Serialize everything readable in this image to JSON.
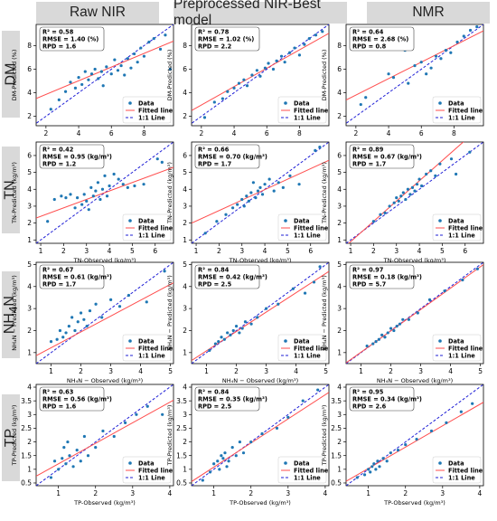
{
  "columns": [
    "Raw NIR",
    "Preprocessed NIR-Best model",
    "NMR"
  ],
  "rows": [
    {
      "label": "DM",
      "html": "DM"
    },
    {
      "label": "TN",
      "html": "TN"
    },
    {
      "label": "NH4N",
      "html": "NH<sub>4</sub>N"
    },
    {
      "label": "TP",
      "html": "TP"
    }
  ],
  "legend": {
    "data": "Data",
    "fitted": "Fitted line",
    "oneone": "1:1 Line"
  },
  "colors": {
    "data": "#1f77b4",
    "fitted": "#ff4d4d",
    "oneone": "#1f1fd6",
    "header_bg": "#d9d9d9"
  },
  "chart_data": [
    {
      "type": "scatter",
      "row": "DM",
      "column": "Raw NIR",
      "xlabel": "",
      "ylabel": "DM-Predicted (%)",
      "stats": [
        "R² = 0.58",
        "RMSE = 1.40 (%)",
        "RPD = 1.6"
      ],
      "xlim": [
        1.4,
        9.8
      ],
      "ylim": [
        1.2,
        9.8
      ],
      "xticks": [
        2,
        4,
        6,
        8
      ],
      "yticks": [
        2,
        4,
        6,
        8
      ],
      "fit": {
        "slope": 0.58,
        "intercept": 2.7
      },
      "x": [
        2.3,
        2.8,
        3.2,
        3.5,
        3.8,
        4.0,
        4.2,
        4.4,
        4.6,
        4.8,
        5.0,
        5.2,
        5.4,
        5.5,
        5.7,
        6.0,
        6.2,
        6.4,
        6.6,
        6.8,
        7.0,
        7.2,
        7.4,
        7.6,
        7.8,
        8.0,
        8.3,
        8.6,
        9.0,
        9.3,
        9.6
      ],
      "y": [
        2.6,
        3.4,
        4.1,
        4.9,
        4.4,
        5.3,
        4.7,
        5.8,
        5.1,
        5.6,
        6.0,
        5.2,
        5.8,
        4.6,
        6.2,
        5.6,
        6.8,
        5.9,
        6.3,
        5.5,
        6.9,
        6.1,
        7.3,
        6.6,
        7.8,
        7.1,
        8.3,
        8.6,
        7.7,
        8.9,
        6.0
      ]
    },
    {
      "type": "scatter",
      "row": "DM",
      "column": "Preprocessed NIR-Best model",
      "xlabel": "",
      "ylabel": "DM-Predicted (%)",
      "stats": [
        "R² = 0.78",
        "RMSE = 1.02 (%)",
        "RPD = 2.2"
      ],
      "xlim": [
        1.4,
        9.8
      ],
      "ylim": [
        1.2,
        9.8
      ],
      "xticks": [
        2,
        4,
        6,
        8
      ],
      "yticks": [
        2,
        4,
        6,
        8
      ],
      "fit": {
        "slope": 0.78,
        "intercept": 1.4
      },
      "x": [
        2.2,
        2.8,
        3.3,
        3.6,
        4.0,
        4.3,
        4.6,
        4.8,
        5.1,
        5.4,
        5.6,
        5.9,
        6.1,
        6.4,
        6.6,
        6.9,
        7.1,
        7.4,
        7.7,
        8.0,
        8.3,
        8.6,
        9.0,
        9.4
      ],
      "y": [
        1.9,
        3.2,
        3.5,
        4.1,
        4.4,
        4.8,
        5.1,
        4.6,
        5.5,
        5.9,
        5.4,
        6.1,
        6.5,
        6.0,
        6.7,
        7.1,
        6.6,
        7.4,
        7.8,
        7.2,
        8.1,
        8.6,
        8.9,
        9.2
      ]
    },
    {
      "type": "scatter",
      "row": "DM",
      "column": "NMR",
      "xlabel": "",
      "ylabel": "DM-Predicted (%)",
      "stats": [
        "R² = 0.64",
        "RMSE = 2.68 (%)",
        "RPD = 0.8"
      ],
      "xlim": [
        1.4,
        9.8
      ],
      "ylim": [
        1.2,
        9.8
      ],
      "xticks": [
        2,
        4,
        6,
        8
      ],
      "yticks": [
        2,
        4,
        6,
        8
      ],
      "fit": {
        "slope": 0.7,
        "intercept": 2.4
      },
      "x": [
        2.3,
        2.6,
        3.5,
        3.8,
        4.0,
        4.3,
        4.5,
        4.8,
        5.0,
        5.2,
        5.6,
        6.0,
        6.3,
        6.6,
        6.9,
        7.2,
        7.5,
        7.8,
        8.2,
        8.6,
        9.0,
        9.4
      ],
      "y": [
        3.0,
        3.6,
        8.3,
        8.8,
        5.6,
        5.3,
        7.9,
        8.6,
        7.6,
        4.8,
        6.3,
        6.6,
        5.6,
        6.1,
        7.1,
        6.9,
        7.6,
        7.4,
        8.3,
        8.8,
        9.3,
        9.6
      ]
    },
    {
      "type": "scatter",
      "row": "TN",
      "column": "Raw NIR",
      "xlabel": "TN-Observed (kg/m³)",
      "ylabel": "TN-Predicted (kg/m³)",
      "stats": [
        "R² = 0.42",
        "RMSE = 0.95 (kg/m³)",
        "RPD = 1.2"
      ],
      "xlim": [
        0.8,
        6.8
      ],
      "ylim": [
        0.8,
        6.8
      ],
      "xticks": [
        1,
        2,
        3,
        4,
        5,
        6
      ],
      "yticks": [
        1,
        2,
        3,
        4,
        5,
        6
      ],
      "fit": {
        "slope": 0.5,
        "intercept": 1.9
      },
      "x": [
        1.3,
        1.6,
        1.9,
        2.1,
        2.3,
        2.5,
        2.6,
        2.8,
        2.9,
        3.0,
        3.1,
        3.2,
        3.3,
        3.4,
        3.5,
        3.6,
        3.7,
        3.8,
        3.9,
        4.0,
        4.2,
        4.4,
        4.6,
        4.8,
        5.1,
        5.5,
        6.1,
        6.3
      ],
      "y": [
        2.1,
        3.4,
        3.6,
        3.5,
        3.7,
        2.9,
        3.5,
        3.1,
        3.7,
        3.3,
        2.8,
        4.1,
        3.6,
        3.9,
        4.4,
        3.4,
        4.0,
        4.8,
        3.6,
        4.2,
        4.9,
        4.6,
        4.3,
        4.1,
        4.2,
        4.3,
        5.8,
        5.6
      ]
    },
    {
      "type": "scatter",
      "row": "TN",
      "column": "Preprocessed NIR-Best model",
      "xlabel": "TN-Observed (kg/m³)",
      "ylabel": "TN-Predicted (kg/m³)",
      "stats": [
        "R² = 0.66",
        "RMSE = 0.70 (kg/m³)",
        "RPD = 1.7"
      ],
      "xlim": [
        0.8,
        6.8
      ],
      "ylim": [
        0.8,
        6.8
      ],
      "xticks": [
        1,
        2,
        3,
        4,
        5,
        6
      ],
      "yticks": [
        1,
        2,
        3,
        4,
        5,
        6
      ],
      "fit": {
        "slope": 0.62,
        "intercept": 1.5
      },
      "x": [
        1.4,
        1.9,
        2.3,
        2.6,
        2.8,
        3.0,
        3.1,
        3.2,
        3.3,
        3.4,
        3.5,
        3.6,
        3.7,
        3.8,
        3.9,
        4.0,
        4.2,
        4.4,
        4.6,
        4.8,
        5.1,
        5.5,
        6.2,
        6.4
      ],
      "y": [
        1.4,
        2.1,
        2.5,
        2.9,
        3.1,
        3.4,
        3.0,
        3.6,
        3.3,
        3.8,
        4.4,
        3.5,
        3.9,
        4.1,
        3.7,
        4.3,
        4.6,
        3.9,
        4.4,
        4.1,
        4.8,
        4.3,
        6.3,
        6.5
      ]
    },
    {
      "type": "scatter",
      "row": "TN",
      "column": "NMR",
      "xlabel": "TN-Observed (kg/m³)",
      "ylabel": "TN-Predicted (kg/m³)",
      "stats": [
        "R² = 0.89",
        "RMSE = 0.67 (kg/m³)",
        "RPD = 1.7"
      ],
      "xlim": [
        0.8,
        6.8
      ],
      "ylim": [
        0.8,
        6.8
      ],
      "xticks": [
        1,
        2,
        3,
        4,
        5,
        6
      ],
      "yticks": [
        1,
        2,
        3,
        4,
        5,
        6
      ],
      "fit": {
        "slope": 1.2,
        "intercept": -0.3
      },
      "x": [
        2.0,
        2.3,
        2.5,
        2.7,
        2.9,
        3.0,
        3.1,
        3.2,
        3.3,
        3.4,
        3.5,
        3.6,
        3.7,
        3.8,
        3.9,
        4.0,
        4.1,
        4.3,
        4.5,
        4.7,
        4.9,
        5.4,
        5.6,
        6.2
      ],
      "y": [
        2.1,
        2.5,
        2.6,
        3.0,
        3.2,
        3.5,
        3.3,
        3.6,
        3.8,
        3.4,
        4.0,
        3.7,
        4.1,
        3.9,
        4.3,
        4.6,
        4.2,
        4.9,
        5.1,
        4.8,
        5.5,
        5.8,
        4.9,
        6.2
      ]
    },
    {
      "type": "scatter",
      "row": "NH4N",
      "column": "Raw NIR",
      "xlabel": "NH₄N − Observed (kg/m³)",
      "ylabel": "NH₄N − Predicted (kg/m³)",
      "stats": [
        "R² = 0.67",
        "RMSE = 0.61 (kg/m³)",
        "RPD = 1.7"
      ],
      "xlim": [
        0.5,
        5.1
      ],
      "ylim": [
        0.5,
        5.1
      ],
      "xticks": [
        1,
        2,
        3,
        4,
        5
      ],
      "yticks": [
        1,
        2,
        3,
        4,
        5
      ],
      "fit": {
        "slope": 0.72,
        "intercept": 0.5
      },
      "x": [
        1.0,
        1.2,
        1.3,
        1.4,
        1.5,
        1.6,
        1.7,
        1.8,
        1.9,
        2.0,
        2.1,
        2.2,
        2.3,
        2.5,
        2.7,
        3.0,
        3.3,
        3.6,
        4.2,
        4.8
      ],
      "y": [
        1.5,
        1.6,
        2.0,
        1.7,
        1.9,
        2.2,
        2.6,
        2.0,
        2.4,
        2.8,
        2.5,
        2.2,
        2.9,
        3.2,
        2.6,
        3.4,
        3.1,
        3.6,
        3.3,
        4.7
      ]
    },
    {
      "type": "scatter",
      "row": "NH4N",
      "column": "Preprocessed NIR-Best model",
      "xlabel": "NH₄N − Observed (kg/m³)",
      "ylabel": "NH₄N − Predicted (kg/m³)",
      "stats": [
        "R² = 0.84",
        "RMSE = 0.42 (kg/m³)",
        "RPD = 2.5"
      ],
      "xlim": [
        0.5,
        5.1
      ],
      "ylim": [
        0.5,
        5.1
      ],
      "xticks": [
        1,
        2,
        3,
        4,
        5
      ],
      "yticks": [
        1,
        2,
        3,
        4,
        5
      ],
      "fit": {
        "slope": 0.88,
        "intercept": 0.2
      },
      "x": [
        1.1,
        1.3,
        1.4,
        1.5,
        1.6,
        1.7,
        1.8,
        1.9,
        2.0,
        2.1,
        2.2,
        2.3,
        2.5,
        2.7,
        3.0,
        3.4,
        3.9,
        4.3,
        4.6,
        4.8
      ],
      "y": [
        1.1,
        1.4,
        1.5,
        1.7,
        1.6,
        1.9,
        1.8,
        2.0,
        2.2,
        1.9,
        2.1,
        2.4,
        2.3,
        2.6,
        3.0,
        3.2,
        3.9,
        3.7,
        4.2,
        4.9
      ]
    },
    {
      "type": "scatter",
      "row": "NH4N",
      "column": "NMR",
      "xlabel": "NH₄N − Observed (kg/m³)",
      "ylabel": "NH₄N − Predicted (kg/m³)",
      "stats": [
        "R² = 0.97",
        "RMSE = 0.18 (kg/m³)",
        "RPD = 5.7"
      ],
      "xlim": [
        0.5,
        5.1
      ],
      "ylim": [
        0.5,
        5.1
      ],
      "xticks": [
        1,
        2,
        3,
        4,
        5
      ],
      "yticks": [
        1,
        2,
        3,
        4,
        5
      ],
      "fit": {
        "slope": 0.97,
        "intercept": 0.05
      },
      "x": [
        1.2,
        1.4,
        1.5,
        1.6,
        1.7,
        1.8,
        1.9,
        2.0,
        2.1,
        2.2,
        2.3,
        2.4,
        2.6,
        2.9,
        3.3,
        3.8,
        4.4,
        4.9
      ],
      "y": [
        1.3,
        1.4,
        1.5,
        1.6,
        1.8,
        1.7,
        1.9,
        2.1,
        2.0,
        2.2,
        2.3,
        2.5,
        2.5,
        2.8,
        3.4,
        3.8,
        4.3,
        4.8
      ]
    },
    {
      "type": "scatter",
      "row": "TP",
      "column": "Raw NIR",
      "xlabel": "TP-Observed (kg/m³)",
      "ylabel": "TP-Predicted (kg/m³)",
      "stats": [
        "R² = 0.63",
        "RMSE = 0.56 (kg/m³)",
        "RPD = 1.6"
      ],
      "xlim": [
        0.4,
        4.1
      ],
      "ylim": [
        0.4,
        4.1
      ],
      "xticks": [
        1,
        2,
        3,
        4
      ],
      "yticks": [
        0.5,
        1.0,
        1.5,
        2.0,
        2.5,
        3.0,
        3.5,
        4.0
      ],
      "fit": {
        "slope": 0.75,
        "intercept": 0.45
      },
      "x": [
        0.8,
        0.9,
        1.0,
        1.1,
        1.15,
        1.2,
        1.25,
        1.3,
        1.4,
        1.5,
        1.6,
        1.7,
        1.8,
        2.0,
        2.2,
        2.5,
        2.8,
        3.1,
        3.4,
        3.8
      ],
      "y": [
        0.7,
        1.3,
        1.0,
        1.4,
        1.8,
        1.2,
        2.0,
        1.5,
        1.1,
        1.7,
        1.3,
        2.2,
        1.5,
        1.8,
        2.4,
        2.2,
        2.7,
        3.0,
        3.3,
        3.0
      ]
    },
    {
      "type": "scatter",
      "row": "TP",
      "column": "Preprocessed NIR-Best model",
      "xlabel": "TP-Observed (kg/m³)",
      "ylabel": "TP-Predicted (kg/m³)",
      "stats": [
        "R² = 0.84",
        "RMSE = 0.35 (kg/m³)",
        "RPD = 2.5"
      ],
      "xlim": [
        0.4,
        4.1
      ],
      "ylim": [
        0.4,
        4.1
      ],
      "xticks": [
        1,
        2,
        3,
        4
      ],
      "yticks": [
        0.5,
        1.0,
        1.5,
        2.0,
        2.5,
        3.0,
        3.5,
        4.0
      ],
      "fit": {
        "slope": 0.88,
        "intercept": 0.2
      },
      "x": [
        0.7,
        0.9,
        1.0,
        1.1,
        1.15,
        1.2,
        1.25,
        1.3,
        1.35,
        1.4,
        1.5,
        1.6,
        1.7,
        1.8,
        2.0,
        2.3,
        2.7,
        3.0,
        3.4,
        3.8
      ],
      "y": [
        0.6,
        0.9,
        1.2,
        1.3,
        1.0,
        1.5,
        1.4,
        1.6,
        1.1,
        1.3,
        1.8,
        1.5,
        2.0,
        1.6,
        2.0,
        2.3,
        2.5,
        2.9,
        3.5,
        3.9
      ]
    },
    {
      "type": "scatter",
      "row": "TP",
      "column": "NMR",
      "xlabel": "TP-Observed (kg/m³)",
      "ylabel": "TP-Predicted (kg/m³)",
      "stats": [
        "R² = 0.95",
        "RMSE = 0.34 (kg/m³)",
        "RPD = 2.6"
      ],
      "xlim": [
        0.4,
        4.1
      ],
      "ylim": [
        0.4,
        4.1
      ],
      "xticks": [
        1,
        2,
        3,
        4
      ],
      "yticks": [
        0.5,
        1.0,
        1.5,
        2.0,
        2.5,
        3.0,
        3.5,
        4.0
      ],
      "fit": {
        "slope": 0.78,
        "intercept": 0.25
      },
      "x": [
        0.7,
        0.9,
        1.0,
        1.05,
        1.1,
        1.15,
        1.2,
        1.25,
        1.3,
        1.4,
        1.5,
        1.6,
        1.8,
        2.0,
        2.3,
        2.7,
        3.1,
        3.5,
        3.8
      ],
      "y": [
        0.7,
        0.8,
        1.0,
        0.9,
        1.1,
        1.2,
        1.0,
        1.3,
        1.1,
        1.4,
        1.3,
        1.6,
        1.7,
        1.9,
        2.1,
        2.4,
        2.7,
        3.1,
        3.4
      ]
    }
  ]
}
